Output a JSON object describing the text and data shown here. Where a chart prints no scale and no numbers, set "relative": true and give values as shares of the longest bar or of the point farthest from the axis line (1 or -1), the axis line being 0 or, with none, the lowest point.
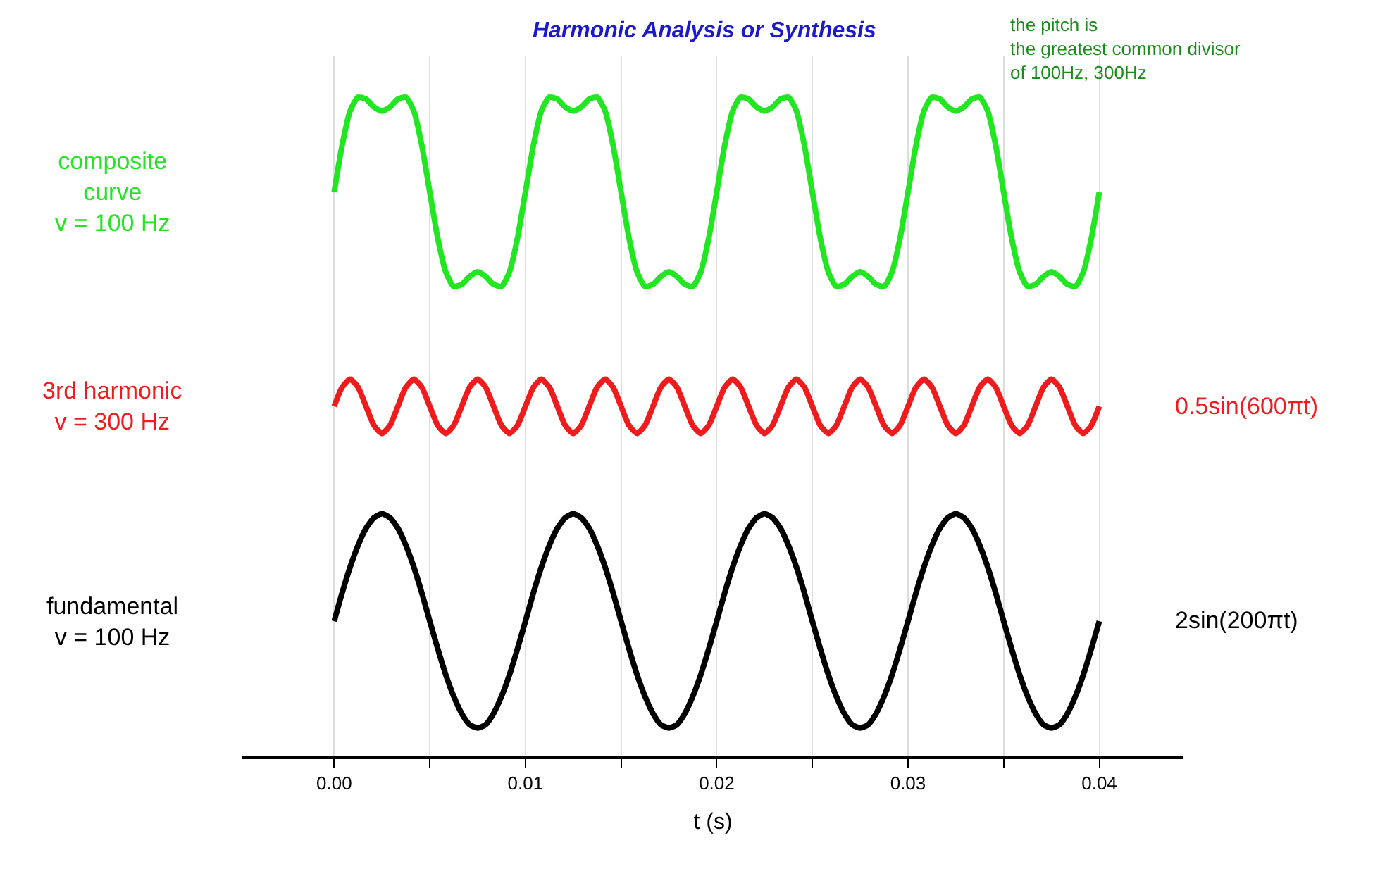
{
  "chart_data": {
    "type": "line",
    "title": "Harmonic Analysis or Synthesis",
    "xlabel": "t (s)",
    "relative": true,
    "x": [
      0,
      0.000417,
      0.000833,
      0.00125,
      0.001667,
      0.002083,
      0.0025,
      0.002917,
      0.003333,
      0.00375,
      0.004167,
      0.004583,
      0.005,
      0.005417,
      0.005833,
      0.00625,
      0.006667,
      0.007083,
      0.0075,
      0.007917,
      0.008333,
      0.00875,
      0.009167,
      0.009583,
      0.01,
      0.010417,
      0.010833,
      0.01125,
      0.011667,
      0.012083,
      0.0125,
      0.012917,
      0.013333,
      0.01375,
      0.014167,
      0.014583,
      0.015,
      0.015417,
      0.015833,
      0.01625,
      0.016667,
      0.017083,
      0.0175,
      0.017917,
      0.018333,
      0.01875,
      0.019167,
      0.019583,
      0.02,
      0.020417,
      0.020833,
      0.02125,
      0.021667,
      0.022083,
      0.0225,
      0.022917,
      0.023333,
      0.02375,
      0.024167,
      0.024583,
      0.025,
      0.025417,
      0.025833,
      0.02625,
      0.026667,
      0.027083,
      0.0275,
      0.027917,
      0.028333,
      0.02875,
      0.029167,
      0.029583,
      0.03,
      0.030417,
      0.030833,
      0.03125,
      0.031667,
      0.032083,
      0.0325,
      0.032917,
      0.033333,
      0.03375,
      0.034167,
      0.034583,
      0.035,
      0.035417,
      0.035833,
      0.03625,
      0.036667,
      0.037083,
      0.0375,
      0.037917,
      0.038333,
      0.03875,
      0.039167,
      0.039583,
      0.04
    ],
    "series": [
      {
        "name": "composite\ncurve\nv = 100 Hz",
        "color": "#22e622",
        "values": [
          0.856,
          0.927,
          0.979,
          1.0,
          0.997,
          0.985,
          0.979,
          0.985,
          0.997,
          1.0,
          0.979,
          0.927,
          0.856,
          0.786,
          0.735,
          0.713,
          0.716,
          0.728,
          0.735,
          0.728,
          0.716,
          0.713,
          0.735,
          0.786,
          0.856,
          0.927,
          0.979,
          1.0,
          0.997,
          0.985,
          0.979,
          0.985,
          0.997,
          1.0,
          0.979,
          0.927,
          0.856,
          0.786,
          0.735,
          0.713,
          0.716,
          0.728,
          0.735,
          0.728,
          0.716,
          0.713,
          0.735,
          0.786,
          0.856,
          0.927,
          0.979,
          1.0,
          0.997,
          0.985,
          0.979,
          0.985,
          0.997,
          1.0,
          0.979,
          0.927,
          0.856,
          0.786,
          0.735,
          0.713,
          0.716,
          0.728,
          0.735,
          0.728,
          0.716,
          0.713,
          0.735,
          0.786,
          0.856,
          0.927,
          0.979,
          1.0,
          0.997,
          0.985,
          0.979,
          0.985,
          0.997,
          1.0,
          0.979,
          0.927,
          0.856,
          0.786,
          0.735,
          0.713,
          0.716,
          0.728,
          0.735,
          0.728,
          0.716,
          0.713,
          0.735,
          0.786,
          0.856
        ]
      },
      {
        "name": "3rd harmonic\nv = 300 Hz",
        "color": "#ee1c1c",
        "values": [
          0.531,
          0.56,
          0.572,
          0.56,
          0.531,
          0.502,
          0.49,
          0.502,
          0.531,
          0.56,
          0.572,
          0.56,
          0.531,
          0.502,
          0.49,
          0.502,
          0.531,
          0.56,
          0.572,
          0.56,
          0.531,
          0.502,
          0.49,
          0.502,
          0.531,
          0.56,
          0.572,
          0.56,
          0.531,
          0.502,
          0.49,
          0.502,
          0.531,
          0.56,
          0.572,
          0.56,
          0.531,
          0.502,
          0.49,
          0.502,
          0.531,
          0.56,
          0.572,
          0.56,
          0.531,
          0.502,
          0.49,
          0.502,
          0.531,
          0.56,
          0.572,
          0.56,
          0.531,
          0.502,
          0.49,
          0.502,
          0.531,
          0.56,
          0.572,
          0.56,
          0.531,
          0.502,
          0.49,
          0.502,
          0.531,
          0.56,
          0.572,
          0.56,
          0.531,
          0.502,
          0.49,
          0.502,
          0.531,
          0.56,
          0.572,
          0.56,
          0.531,
          0.502,
          0.49,
          0.502,
          0.531,
          0.56,
          0.572,
          0.56,
          0.531,
          0.502,
          0.49,
          0.502,
          0.531,
          0.56,
          0.572,
          0.56,
          0.531,
          0.502,
          0.49,
          0.502,
          0.531
        ]
      },
      {
        "name": "fundamental\nv = 100 Hz",
        "color": "#000000",
        "values": [
          0.205,
          0.248,
          0.287,
          0.32,
          0.346,
          0.362,
          0.368,
          0.362,
          0.346,
          0.32,
          0.287,
          0.248,
          0.205,
          0.163,
          0.124,
          0.091,
          0.065,
          0.048,
          0.043,
          0.048,
          0.065,
          0.091,
          0.124,
          0.163,
          0.205,
          0.248,
          0.287,
          0.32,
          0.346,
          0.362,
          0.368,
          0.362,
          0.346,
          0.32,
          0.287,
          0.248,
          0.205,
          0.163,
          0.124,
          0.091,
          0.065,
          0.048,
          0.043,
          0.048,
          0.065,
          0.091,
          0.124,
          0.163,
          0.205,
          0.248,
          0.287,
          0.32,
          0.346,
          0.362,
          0.368,
          0.362,
          0.346,
          0.32,
          0.287,
          0.248,
          0.205,
          0.163,
          0.124,
          0.091,
          0.065,
          0.048,
          0.043,
          0.048,
          0.065,
          0.091,
          0.124,
          0.163,
          0.205,
          0.248,
          0.287,
          0.32,
          0.346,
          0.362,
          0.368,
          0.362,
          0.346,
          0.32,
          0.287,
          0.248,
          0.205,
          0.163,
          0.124,
          0.091,
          0.065,
          0.048,
          0.043,
          0.048,
          0.065,
          0.091,
          0.124,
          0.163,
          0.205
        ]
      }
    ],
    "xlim": [
      -0.0048,
      0.0444
    ],
    "xticks": [
      {
        "value": 0,
        "label": "0.00"
      },
      {
        "value": 0.005,
        "label": null
      },
      {
        "value": 0.01,
        "label": "0.01"
      },
      {
        "value": 0.015,
        "label": null
      },
      {
        "value": 0.02,
        "label": "0.02"
      },
      {
        "value": 0.025,
        "label": null
      },
      {
        "value": 0.03,
        "label": "0.03"
      },
      {
        "value": 0.035,
        "label": null
      },
      {
        "value": 0.04,
        "label": "0.04"
      }
    ],
    "annotations": [
      "the pitch is\nthe greatest common divisor\nof 100Hz, 300Hz",
      "0.5sin(600πt)",
      "2sin(200πt)"
    ],
    "grid": "x",
    "legend": false,
    "marker": "none",
    "line_style": "solid"
  }
}
